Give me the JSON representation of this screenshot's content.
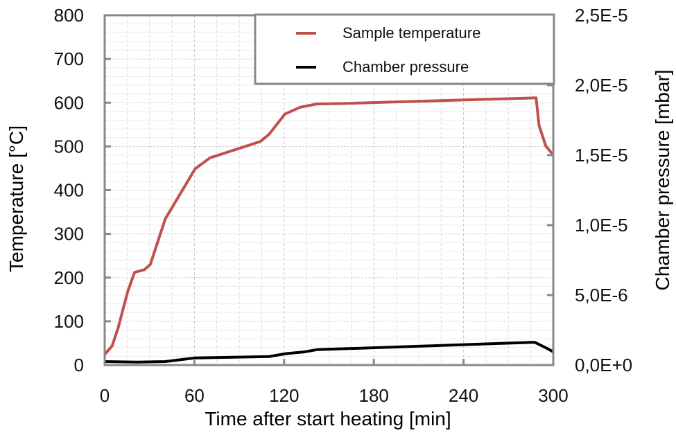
{
  "chart_data": {
    "type": "line",
    "title": "",
    "xlabel": "Time after start heating [min]",
    "ylabel": "Temperature [°C]",
    "y2label": "Chamber pressure [mbar]",
    "xlim": [
      0,
      300
    ],
    "ylim": [
      0,
      800
    ],
    "y2lim": [
      0,
      2.5e-05
    ],
    "x_ticks": [
      0,
      60,
      120,
      180,
      240,
      300
    ],
    "x_tick_labels": [
      "0",
      "60",
      "120",
      "180",
      "240",
      "300"
    ],
    "y_ticks": [
      0,
      100,
      200,
      300,
      400,
      500,
      600,
      700,
      800
    ],
    "y_tick_labels": [
      "0",
      "100",
      "200",
      "300",
      "400",
      "500",
      "600",
      "700",
      "800"
    ],
    "y2_ticks": [
      0,
      5e-06,
      1e-05,
      1.5e-05,
      2e-05,
      2.5e-05
    ],
    "y2_tick_labels": [
      "0,0E+0",
      "5,0E-6",
      "1,0E-5",
      "1,5E-5",
      "2,0E-5",
      "2,5E-5"
    ],
    "grid": true,
    "legend_position": "top-right",
    "series": [
      {
        "name": "Sample temperature",
        "axis": "left",
        "color": "#c0504d",
        "x": [
          0,
          5,
          9,
          15.5,
          20,
          26.5,
          30.5,
          40.5,
          60.5,
          70.5,
          104,
          110,
          120.5,
          131,
          142,
          157.5,
          288.5,
          290.5,
          295,
          300
        ],
        "y": [
          24,
          44,
          85,
          169,
          212,
          218,
          230,
          334,
          449,
          474,
          511,
          528,
          574,
          590,
          597,
          598,
          611,
          548,
          501,
          480
        ]
      },
      {
        "name": "Chamber pressure",
        "axis": "right",
        "color": "#000000",
        "x": [
          0,
          22,
          40.5,
          60.5,
          110,
          121,
          133.5,
          142,
          287.5,
          295,
          300
        ],
        "y": [
          2.5e-07,
          2.1e-07,
          2.5e-07,
          5.1e-07,
          6.1e-07,
          8.1e-07,
          9.4e-07,
          1.1e-06,
          1.63e-06,
          1.24e-06,
          9.4e-07
        ]
      }
    ]
  }
}
